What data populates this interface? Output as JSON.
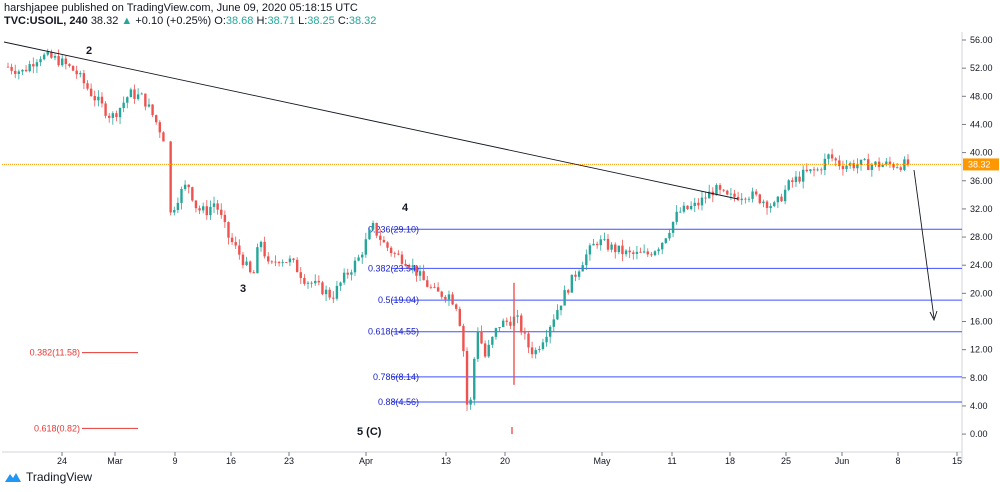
{
  "header": {
    "publisher_line": "harshjapee published on TradingView.com, June 09, 2020 05:18:15 UTC",
    "symbol": "TVC:USOIL, 240",
    "last": "38.32",
    "change_arrow": "▲",
    "change": "+0.10 (+0.25%)",
    "o_label": "O:",
    "o_value": "38.68",
    "h_label": "H:",
    "h_value": "38.71",
    "l_label": "L:",
    "l_value": "38.25",
    "c_label": "C:",
    "c_value": "38.32"
  },
  "footer": {
    "brand": "TradingView",
    "logo_icon": "tradingview-logo-icon"
  },
  "colors": {
    "up": "#26a69a",
    "down": "#ef5350",
    "fib_line": "#3f51ff",
    "fib_text": "#1a22c8",
    "red_fib": "#e53935",
    "price_line": "#ff9800",
    "price_badge": "#ff9800"
  },
  "chart_data": {
    "type": "candlestick",
    "title": "",
    "xlabel": "",
    "ylabel": "",
    "ylim": [
      -1.5,
      57.5
    ],
    "y_ticks": [
      "56.00",
      "52.00",
      "48.00",
      "44.00",
      "40.00",
      "36.00",
      "32.00",
      "28.00",
      "24.00",
      "20.00",
      "16.00",
      "12.00",
      "8.00",
      "4.00",
      "0.00"
    ],
    "y_tick_values": [
      56,
      52,
      48,
      44,
      40,
      36,
      32,
      28,
      24,
      20,
      16,
      12,
      8,
      4,
      0
    ],
    "x_ticks": [
      "24",
      "Mar",
      "9",
      "16",
      "23",
      "Apr",
      "13",
      "20",
      "May",
      "11",
      "18",
      "25",
      "Jun",
      "8",
      "15"
    ],
    "current_price": 38.32,
    "current_price_label": "38.32",
    "fib_levels": [
      {
        "label": "0.236(29.10)",
        "value": 29.1
      },
      {
        "label": "0.382(23.54)",
        "value": 23.54
      },
      {
        "label": "0.5(19.04)",
        "value": 19.04
      },
      {
        "label": "0.618(14.55)",
        "value": 14.55
      },
      {
        "label": "0.786(8.14)",
        "value": 8.14
      },
      {
        "label": "0.88(4.56)",
        "value": 4.56
      }
    ],
    "red_fib_levels": [
      {
        "label": "0.382(11.58)",
        "value": 11.58
      },
      {
        "label": "0.618(0.82)",
        "value": 0.82
      }
    ],
    "wave_labels": [
      "2",
      "3",
      "4",
      "5 (C)"
    ],
    "price_anchors": [
      [
        0,
        52.2
      ],
      [
        0.016,
        51.5
      ],
      [
        0.035,
        53.8
      ],
      [
        0.055,
        53.2
      ],
      [
        0.075,
        51.5
      ],
      [
        0.095,
        48.0
      ],
      [
        0.115,
        45.0
      ],
      [
        0.125,
        46.5
      ],
      [
        0.135,
        48.4
      ],
      [
        0.15,
        47.8
      ],
      [
        0.158,
        46.0
      ],
      [
        0.168,
        43.5
      ],
      [
        0.175,
        41.5
      ],
      [
        0.178,
        30.5
      ],
      [
        0.19,
        34.0
      ],
      [
        0.2,
        35.6
      ],
      [
        0.21,
        32.0
      ],
      [
        0.22,
        31.6
      ],
      [
        0.23,
        33.0
      ],
      [
        0.245,
        28.0
      ],
      [
        0.26,
        25.0
      ],
      [
        0.272,
        22.0
      ],
      [
        0.28,
        28.0
      ],
      [
        0.29,
        23.5
      ],
      [
        0.3,
        25.0
      ],
      [
        0.315,
        24.5
      ],
      [
        0.33,
        22.0
      ],
      [
        0.35,
        20.5
      ],
      [
        0.36,
        19.5
      ],
      [
        0.375,
        22.5
      ],
      [
        0.39,
        25.0
      ],
      [
        0.405,
        29.5
      ],
      [
        0.418,
        27.0
      ],
      [
        0.43,
        25.5
      ],
      [
        0.445,
        24.5
      ],
      [
        0.46,
        22.0
      ],
      [
        0.475,
        20.0
      ],
      [
        0.49,
        19.8
      ],
      [
        0.5,
        18.0
      ],
      [
        0.506,
        12.0
      ],
      [
        0.512,
        0.5
      ],
      [
        0.516,
        8.5
      ],
      [
        0.522,
        15.0
      ],
      [
        0.53,
        11.0
      ],
      [
        0.545,
        15.5
      ],
      [
        0.565,
        16.5
      ],
      [
        0.578,
        12.5
      ],
      [
        0.585,
        11.5
      ],
      [
        0.6,
        15.0
      ],
      [
        0.615,
        19.0
      ],
      [
        0.625,
        21.5
      ],
      [
        0.64,
        25.0
      ],
      [
        0.655,
        27.5
      ],
      [
        0.67,
        26.5
      ],
      [
        0.69,
        25.5
      ],
      [
        0.71,
        25.5
      ],
      [
        0.725,
        27.0
      ],
      [
        0.745,
        31.5
      ],
      [
        0.765,
        32.5
      ],
      [
        0.785,
        34.8
      ],
      [
        0.8,
        33.5
      ],
      [
        0.82,
        34.2
      ],
      [
        0.838,
        33.3
      ],
      [
        0.852,
        32.3
      ],
      [
        0.868,
        35.5
      ],
      [
        0.885,
        37.0
      ],
      [
        0.9,
        37.5
      ],
      [
        0.912,
        39.5
      ],
      [
        0.925,
        38.3
      ]
    ]
  }
}
